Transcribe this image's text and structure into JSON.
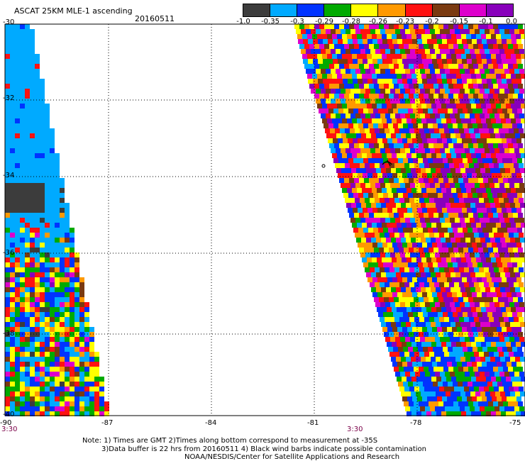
{
  "header": {
    "title": "ASCAT 25KM MLE-1 ascending",
    "date": "20160511"
  },
  "legend": {
    "labels": [
      "-1.0",
      "-0.35",
      "-0.3",
      "-0.29",
      "-0.28",
      "-0.26",
      "-0.23",
      "-0.2",
      "-0.15",
      "-0.1",
      "0.0"
    ],
    "colors": [
      "#3c3c3c",
      "#00aaff",
      "#0033ff",
      "#00aa00",
      "#ffff00",
      "#ff9900",
      "#ff1111",
      "#7a3a10",
      "#dd00cc",
      "#8800bb"
    ]
  },
  "map": {
    "lon_labels": [
      "-90",
      "-87",
      "-84",
      "-81",
      "-78",
      "-75"
    ],
    "lat_labels": [
      "-30",
      "-32",
      "-34",
      "-36",
      "-38",
      "-40"
    ],
    "time_left": "3:30",
    "time_mid": "3:30",
    "ocean_color": "#ffffff",
    "grid_style": "dotted"
  },
  "notes": {
    "line1": "Note: 1) Times are GMT 2)Times along bottom correspond to measurement at -35S",
    "line2": "3)Data buffer is 22 hrs from 20160511 4) Black wind barbs indicate possible contamination",
    "line3": "NOAA/NESDIS/Center for Satellite Applications and Research"
  }
}
